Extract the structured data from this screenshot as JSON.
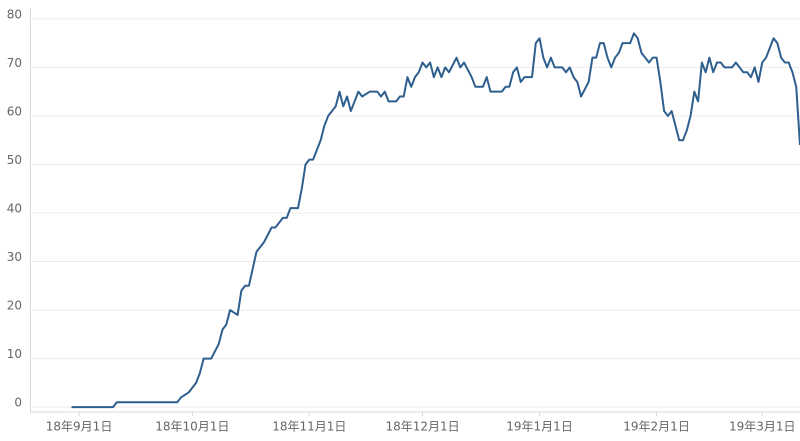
{
  "chart_data": {
    "type": "line",
    "color": "#2e5f8e",
    "grid": true,
    "xlim": [
      "2018-08-19",
      "2019-03-11"
    ],
    "xticks": [
      {
        "value": "2018-09-01",
        "label": "18年9月1日"
      },
      {
        "value": "2018-10-01",
        "label": "18年10月1日"
      },
      {
        "value": "2018-11-01",
        "label": "18年11月1日"
      },
      {
        "value": "2018-12-01",
        "label": "18年12月1日"
      },
      {
        "value": "2019-01-01",
        "label": "19年1月1日"
      },
      {
        "value": "2019-02-01",
        "label": "19年2月1日"
      },
      {
        "value": "2019-03-01",
        "label": "19年3月1日"
      }
    ],
    "ylim": [
      -1,
      81
    ],
    "yticks": [
      0,
      10,
      20,
      30,
      40,
      50,
      60,
      70,
      80
    ],
    "x": [
      "2018-08-30",
      "2018-09-10",
      "2018-09-11",
      "2018-09-27",
      "2018-09-28",
      "2018-09-30",
      "2018-10-02",
      "2018-10-03",
      "2018-10-04",
      "2018-10-06",
      "2018-10-08",
      "2018-10-09",
      "2018-10-10",
      "2018-10-11",
      "2018-10-13",
      "2018-10-14",
      "2018-10-15",
      "2018-10-16",
      "2018-10-18",
      "2018-10-20",
      "2018-10-22",
      "2018-10-23",
      "2018-10-25",
      "2018-10-26",
      "2018-10-27",
      "2018-10-29",
      "2018-10-30",
      "2018-10-31",
      "2018-11-01",
      "2018-11-02",
      "2018-11-04",
      "2018-11-05",
      "2018-11-06",
      "2018-11-08",
      "2018-11-09",
      "2018-11-10",
      "2018-11-11",
      "2018-11-12",
      "2018-11-14",
      "2018-11-15",
      "2018-11-17",
      "2018-11-19",
      "2018-11-20",
      "2018-11-21",
      "2018-11-22",
      "2018-11-24",
      "2018-11-25",
      "2018-11-26",
      "2018-11-27",
      "2018-11-28",
      "2018-11-29",
      "2018-11-30",
      "2018-12-01",
      "2018-12-02",
      "2018-12-03",
      "2018-12-04",
      "2018-12-05",
      "2018-12-06",
      "2018-12-07",
      "2018-12-08",
      "2018-12-10",
      "2018-12-11",
      "2018-12-12",
      "2018-12-14",
      "2018-12-15",
      "2018-12-17",
      "2018-12-18",
      "2018-12-19",
      "2018-12-22",
      "2018-12-23",
      "2018-12-24",
      "2018-12-25",
      "2018-12-26",
      "2018-12-27",
      "2018-12-28",
      "2018-12-30",
      "2018-12-31",
      "2019-01-01",
      "2019-01-02",
      "2019-01-03",
      "2019-01-04",
      "2019-01-05",
      "2019-01-07",
      "2019-01-08",
      "2019-01-09",
      "2019-01-10",
      "2019-01-11",
      "2019-01-12",
      "2019-01-14",
      "2019-01-15",
      "2019-01-16",
      "2019-01-17",
      "2019-01-18",
      "2019-01-19",
      "2019-01-20",
      "2019-01-21",
      "2019-01-22",
      "2019-01-23",
      "2019-01-25",
      "2019-01-26",
      "2019-01-27",
      "2019-01-28",
      "2019-01-29",
      "2019-01-30",
      "2019-01-31",
      "2019-02-01",
      "2019-02-02",
      "2019-02-03",
      "2019-02-04",
      "2019-02-05",
      "2019-02-06",
      "2019-02-07",
      "2019-02-08",
      "2019-02-09",
      "2019-02-10",
      "2019-02-11",
      "2019-02-12",
      "2019-02-13",
      "2019-02-14",
      "2019-02-15",
      "2019-02-16",
      "2019-02-17",
      "2019-02-18",
      "2019-02-19",
      "2019-02-21",
      "2019-02-22",
      "2019-02-24",
      "2019-02-25",
      "2019-02-26",
      "2019-02-27",
      "2019-02-28",
      "2019-03-01",
      "2019-03-02",
      "2019-03-03",
      "2019-03-04",
      "2019-03-05",
      "2019-03-06",
      "2019-03-07",
      "2019-03-08",
      "2019-03-09",
      "2019-03-10",
      "2019-03-11"
    ],
    "values": [
      0,
      0,
      1,
      1,
      2,
      3,
      5,
      7,
      10,
      10,
      13,
      16,
      17,
      20,
      19,
      24,
      25,
      25,
      32,
      34,
      37,
      37,
      39,
      39,
      41,
      41,
      45,
      50,
      51,
      51,
      55,
      58,
      60,
      62,
      65,
      62,
      64,
      61,
      65,
      64,
      65,
      65,
      64,
      65,
      63,
      63,
      64,
      64,
      68,
      66,
      68,
      69,
      71,
      70,
      71,
      68,
      70,
      68,
      70,
      69,
      72,
      70,
      71,
      68,
      66,
      66,
      68,
      65,
      65,
      66,
      66,
      69,
      70,
      67,
      68,
      68,
      75,
      76,
      72,
      70,
      72,
      70,
      70,
      69,
      70,
      68,
      67,
      64,
      67,
      72,
      72,
      75,
      75,
      72,
      70,
      72,
      73,
      75,
      75,
      77,
      76,
      73,
      72,
      71,
      72,
      72,
      67,
      61,
      60,
      61,
      58,
      55,
      55,
      57,
      60,
      65,
      63,
      71,
      69,
      72,
      69,
      71,
      71,
      70,
      70,
      71,
      69,
      69,
      68,
      70,
      67,
      71,
      72,
      74,
      76,
      75,
      72,
      71,
      71,
      69,
      66,
      54
    ]
  }
}
